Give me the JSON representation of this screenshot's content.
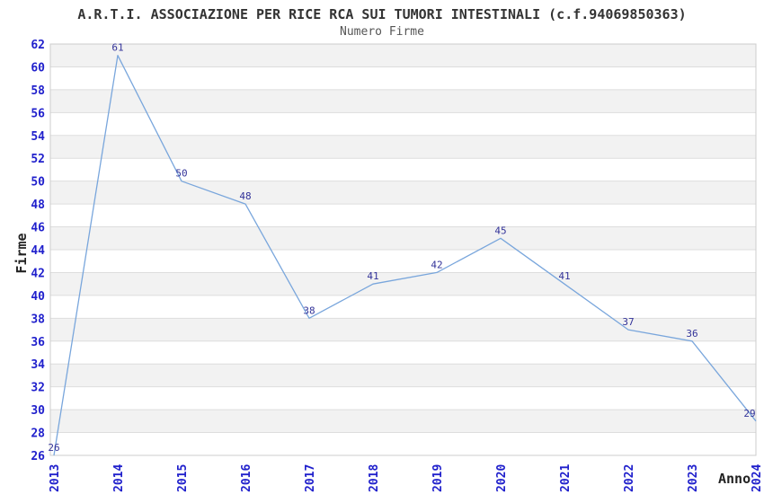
{
  "chart_data": {
    "type": "line",
    "title": "A.R.T.I. ASSOCIAZIONE PER RICE RCA SUI TUMORI INTESTINALI (c.f.94069850363)",
    "subtitle": "Numero Firme",
    "xlabel": "Anno",
    "ylabel": "Firme",
    "categories": [
      "2013",
      "2014",
      "2015",
      "2016",
      "2017",
      "2018",
      "2019",
      "2020",
      "2021",
      "2022",
      "2023",
      "2024"
    ],
    "values": [
      26,
      61,
      50,
      48,
      38,
      41,
      42,
      45,
      41,
      37,
      36,
      29
    ],
    "ylim": [
      26,
      62
    ],
    "ytick_step": 2,
    "grid": "horizontal-bands",
    "legend_position": "none",
    "colors": {
      "line": "#79a6dc",
      "point_label": "#333399",
      "tick_label": "#2020cc",
      "band": "#f2f2f2",
      "grid_line": "#dddddd",
      "plot_border": "#cccccc",
      "plot_background": "#ffffff"
    }
  }
}
